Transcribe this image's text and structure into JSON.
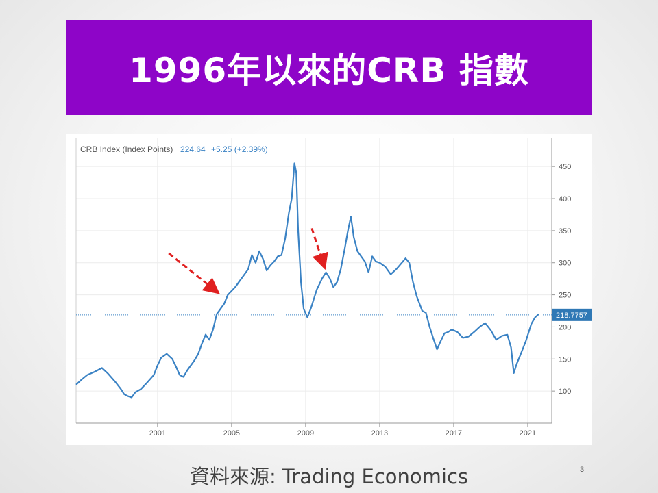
{
  "slide": {
    "title": "1996年以來的CRB 指數",
    "source": "資料來源: Trading Economics",
    "page_number": "3",
    "banner_color": "#8e05c8"
  },
  "chart_data": {
    "type": "line",
    "header": {
      "name": "CRB Index (Index Points)",
      "value": "224.64",
      "change": "+5.25 (+2.39%)"
    },
    "x_ticks": [
      "2001",
      "2005",
      "2009",
      "2013",
      "2017",
      "2021"
    ],
    "y_ticks": [
      "100",
      "150",
      "200",
      "250",
      "300",
      "350",
      "400",
      "450"
    ],
    "xlim": [
      1996.6,
      2022.3
    ],
    "ylim": [
      50,
      495
    ],
    "reference_line": {
      "value": 218.7757,
      "label": "218.7757"
    },
    "annotations": [
      {
        "type": "arrow",
        "color": "#e02020",
        "pointing_to": [
          2004.2,
          255
        ]
      },
      {
        "type": "arrow",
        "color": "#e02020",
        "pointing_to": [
          2010.0,
          295
        ]
      }
    ],
    "series": [
      {
        "color": "#3a82c4",
        "points": [
          [
            1996.6,
            110
          ],
          [
            1996.9,
            118
          ],
          [
            1997.2,
            125
          ],
          [
            1997.6,
            130
          ],
          [
            1998.0,
            136
          ],
          [
            1998.3,
            128
          ],
          [
            1998.7,
            115
          ],
          [
            1999.0,
            104
          ],
          [
            1999.2,
            95
          ],
          [
            1999.4,
            92
          ],
          [
            1999.6,
            90
          ],
          [
            1999.8,
            98
          ],
          [
            2000.1,
            103
          ],
          [
            2000.4,
            112
          ],
          [
            2000.8,
            125
          ],
          [
            2001.0,
            140
          ],
          [
            2001.2,
            152
          ],
          [
            2001.5,
            158
          ],
          [
            2001.8,
            150
          ],
          [
            2002.0,
            138
          ],
          [
            2002.2,
            125
          ],
          [
            2002.4,
            122
          ],
          [
            2002.6,
            132
          ],
          [
            2002.8,
            140
          ],
          [
            2003.0,
            148
          ],
          [
            2003.2,
            158
          ],
          [
            2003.4,
            174
          ],
          [
            2003.6,
            188
          ],
          [
            2003.8,
            180
          ],
          [
            2004.0,
            196
          ],
          [
            2004.2,
            220
          ],
          [
            2004.4,
            228
          ],
          [
            2004.6,
            236
          ],
          [
            2004.8,
            250
          ],
          [
            2005.0,
            256
          ],
          [
            2005.2,
            262
          ],
          [
            2005.4,
            270
          ],
          [
            2005.7,
            282
          ],
          [
            2005.9,
            290
          ],
          [
            2006.1,
            312
          ],
          [
            2006.3,
            300
          ],
          [
            2006.5,
            318
          ],
          [
            2006.7,
            306
          ],
          [
            2006.9,
            288
          ],
          [
            2007.1,
            296
          ],
          [
            2007.3,
            302
          ],
          [
            2007.5,
            310
          ],
          [
            2007.7,
            312
          ],
          [
            2007.9,
            338
          ],
          [
            2008.1,
            378
          ],
          [
            2008.25,
            400
          ],
          [
            2008.4,
            455
          ],
          [
            2008.5,
            440
          ],
          [
            2008.6,
            350
          ],
          [
            2008.75,
            270
          ],
          [
            2008.9,
            228
          ],
          [
            2009.1,
            215
          ],
          [
            2009.3,
            230
          ],
          [
            2009.6,
            258
          ],
          [
            2009.9,
            276
          ],
          [
            2010.1,
            285
          ],
          [
            2010.3,
            276
          ],
          [
            2010.5,
            262
          ],
          [
            2010.7,
            270
          ],
          [
            2010.9,
            290
          ],
          [
            2011.1,
            320
          ],
          [
            2011.3,
            352
          ],
          [
            2011.45,
            372
          ],
          [
            2011.6,
            340
          ],
          [
            2011.8,
            318
          ],
          [
            2012.0,
            310
          ],
          [
            2012.2,
            302
          ],
          [
            2012.4,
            285
          ],
          [
            2012.6,
            310
          ],
          [
            2012.8,
            302
          ],
          [
            2013.0,
            300
          ],
          [
            2013.3,
            294
          ],
          [
            2013.6,
            282
          ],
          [
            2013.9,
            290
          ],
          [
            2014.2,
            300
          ],
          [
            2014.4,
            307
          ],
          [
            2014.6,
            300
          ],
          [
            2014.8,
            270
          ],
          [
            2015.0,
            248
          ],
          [
            2015.3,
            225
          ],
          [
            2015.5,
            222
          ],
          [
            2015.7,
            200
          ],
          [
            2015.9,
            182
          ],
          [
            2016.1,
            165
          ],
          [
            2016.3,
            178
          ],
          [
            2016.5,
            190
          ],
          [
            2016.7,
            192
          ],
          [
            2016.9,
            196
          ],
          [
            2017.2,
            192
          ],
          [
            2017.5,
            183
          ],
          [
            2017.8,
            185
          ],
          [
            2018.1,
            192
          ],
          [
            2018.4,
            200
          ],
          [
            2018.7,
            206
          ],
          [
            2019.0,
            195
          ],
          [
            2019.3,
            180
          ],
          [
            2019.6,
            186
          ],
          [
            2019.9,
            188
          ],
          [
            2020.1,
            168
          ],
          [
            2020.25,
            128
          ],
          [
            2020.4,
            142
          ],
          [
            2020.6,
            156
          ],
          [
            2020.9,
            178
          ],
          [
            2021.2,
            205
          ],
          [
            2021.4,
            215
          ],
          [
            2021.6,
            220
          ]
        ]
      }
    ]
  }
}
